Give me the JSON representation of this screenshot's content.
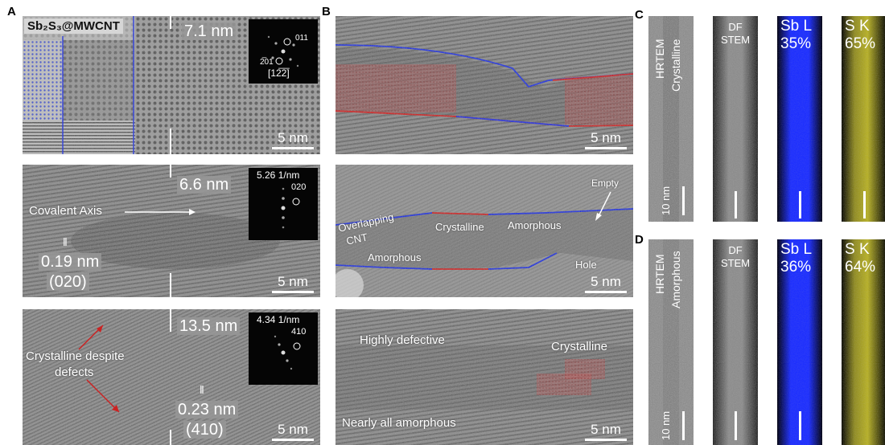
{
  "panel_letters": {
    "A": "A",
    "B": "B",
    "C": "C",
    "D": "D"
  },
  "A": {
    "top": {
      "title": "Sb₂S₃@MWCNT",
      "thickness": "7.1 nm",
      "fft": {
        "spot1": "011",
        "spot2": "2̅01",
        "zone": "[12̅2̅]"
      },
      "scalebar": "5 nm"
    },
    "mid": {
      "thickness": "6.6 nm",
      "fft": {
        "scale": "5.26 1/nm",
        "spot": "020"
      },
      "axis_label": "Covalent Axis",
      "spacing": "0.19 nm",
      "plane": "(020)",
      "scalebar": "5 nm"
    },
    "bottom": {
      "thickness": "13.5 nm",
      "fft": {
        "scale": "4.34 1/nm",
        "spot": "410"
      },
      "note_line1": "Crystalline despite",
      "note_line2": "defects",
      "spacing": "0.23 nm",
      "plane": "(410)",
      "scalebar": "5 nm"
    }
  },
  "B": {
    "top": {
      "scalebar": "5 nm"
    },
    "mid": {
      "overlapping_line1": "Overlapping",
      "overlapping_line2": "CNT",
      "crystalline": "Crystalline",
      "amorphous_right": "Amorphous",
      "amorphous_left": "Amorphous",
      "empty": "Empty",
      "hole": "Hole",
      "scalebar": "5 nm"
    },
    "bottom": {
      "highly_defective": "Highly defective",
      "crystalline": "Crystalline",
      "nearly_amorphous": "Nearly all amorphous",
      "scalebar": "5 nm"
    }
  },
  "C": {
    "hrtem": "HRTEM",
    "state": "Crystalline",
    "df_line1": "DF",
    "df_line2": "STEM",
    "sb_label": "Sb L",
    "sb_pct": "35%",
    "s_label": "S K",
    "s_pct": "65%"
  },
  "D": {
    "hrtem": "HRTEM",
    "state": "Amorphous",
    "df_line1": "DF",
    "df_line2": "STEM",
    "sb_label": "Sb L",
    "sb_pct": "36%",
    "s_label": "S K",
    "s_pct": "64%",
    "scalebar": "10 nm"
  },
  "C_scalebar": "10 nm",
  "colors": {
    "blue_trace": "#2233dd",
    "red_trace": "#cc2222",
    "sb_map": "#1a2cff",
    "s_map": "#b7b022"
  }
}
